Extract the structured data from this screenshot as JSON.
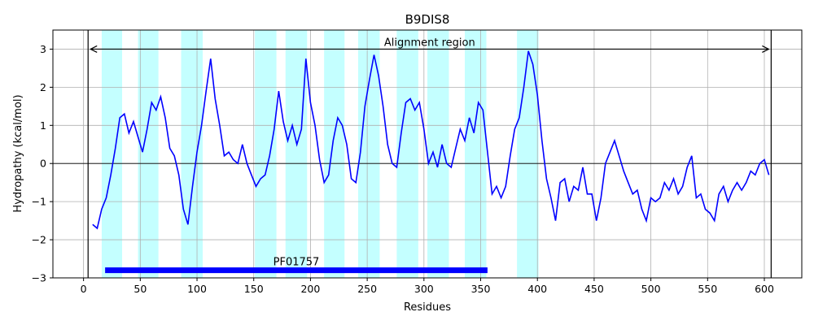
{
  "chart_data": {
    "type": "line",
    "title": "B9DIS8",
    "xlabel": "Residues",
    "ylabel": "Hydropathy (kcal/mol)",
    "xlim": [
      -27,
      633
    ],
    "ylim": [
      -3,
      3.5
    ],
    "xticks": [
      0,
      50,
      100,
      150,
      200,
      250,
      300,
      350,
      400,
      450,
      500,
      550,
      600
    ],
    "yticks": [
      -3,
      -2,
      -1,
      0,
      1,
      2,
      3
    ],
    "grid": true,
    "colors": {
      "line": "#0000ff",
      "tm_region": "#c4ffff",
      "domain_bar": "#0000ff",
      "axis": "#000000",
      "grid": "#b0b0b0"
    },
    "tm_regions": [
      [
        16,
        34
      ],
      [
        48,
        66
      ],
      [
        86,
        105
      ],
      [
        151,
        170
      ],
      [
        178,
        197
      ],
      [
        212,
        230
      ],
      [
        242,
        261
      ],
      [
        276,
        295
      ],
      [
        303,
        322
      ],
      [
        336,
        355
      ],
      [
        382,
        401
      ]
    ],
    "boundary_lines": [
      4,
      606
    ],
    "alignment_region": {
      "label": "Alignment region",
      "start": 4,
      "end": 606,
      "y": 3.0
    },
    "domain": {
      "label": "PF01757",
      "start": 19,
      "end": 356,
      "y": -2.8
    },
    "series": [
      {
        "x": [
          8,
          12,
          16,
          20,
          24,
          28,
          32,
          36,
          40,
          44,
          48,
          52,
          56,
          60,
          64,
          68,
          72,
          76,
          80,
          84,
          88,
          92,
          96,
          100,
          104,
          108,
          112,
          116,
          120,
          124,
          128,
          132,
          136,
          140,
          144,
          148,
          152,
          156,
          160,
          164,
          168,
          172,
          176,
          180,
          184,
          188,
          192,
          196,
          200,
          204,
          208,
          212,
          216,
          220,
          224,
          228,
          232,
          236,
          240,
          244,
          248,
          252,
          256,
          260,
          264,
          268,
          272,
          276,
          280,
          284,
          288,
          292,
          296,
          300,
          304,
          308,
          312,
          316,
          320,
          324,
          328,
          332,
          336,
          340,
          344,
          348,
          352,
          356,
          360,
          364,
          368,
          372,
          376,
          380,
          384,
          388,
          392,
          396,
          400,
          404,
          408,
          412,
          416,
          420,
          424,
          428,
          432,
          436,
          440,
          444,
          448,
          452,
          456,
          460,
          464,
          468,
          472,
          476,
          480,
          484,
          488,
          492,
          496,
          500,
          504,
          508,
          512,
          516,
          520,
          524,
          528,
          532,
          536,
          540,
          544,
          548,
          552,
          556,
          560,
          564,
          568,
          572,
          576,
          580,
          584,
          588,
          592,
          596,
          600,
          604
        ],
        "values": [
          -1.6,
          -1.7,
          -1.2,
          -0.9,
          -0.3,
          0.4,
          1.2,
          1.3,
          0.8,
          1.1,
          0.7,
          0.3,
          0.9,
          1.6,
          1.4,
          1.75,
          1.2,
          0.4,
          0.2,
          -0.3,
          -1.2,
          -1.6,
          -0.6,
          0.3,
          1.0,
          1.9,
          2.75,
          1.7,
          1.0,
          0.2,
          0.3,
          0.1,
          0.0,
          0.5,
          0.0,
          -0.3,
          -0.6,
          -0.4,
          -0.3,
          0.2,
          0.9,
          1.9,
          1.1,
          0.6,
          1.0,
          0.5,
          0.9,
          2.75,
          1.6,
          1.0,
          0.1,
          -0.5,
          -0.3,
          0.6,
          1.2,
          1.0,
          0.5,
          -0.4,
          -0.5,
          0.3,
          1.5,
          2.2,
          2.85,
          2.3,
          1.5,
          0.5,
          0.0,
          -0.1,
          0.8,
          1.6,
          1.7,
          1.4,
          1.6,
          0.9,
          0.0,
          0.3,
          -0.1,
          0.5,
          0.0,
          -0.1,
          0.4,
          0.9,
          0.6,
          1.2,
          0.8,
          1.6,
          1.4,
          0.3,
          -0.8,
          -0.6,
          -0.9,
          -0.6,
          0.2,
          0.9,
          1.2,
          2.0,
          2.95,
          2.6,
          1.8,
          0.6,
          -0.4,
          -0.9,
          -1.5,
          -0.5,
          -0.4,
          -1.0,
          -0.6,
          -0.7,
          -0.1,
          -0.8,
          -0.8,
          -1.5,
          -0.9,
          0.0,
          0.3,
          0.6,
          0.2,
          -0.2,
          -0.5,
          -0.8,
          -0.7,
          -1.2,
          -1.5,
          -0.9,
          -1.0,
          -0.9,
          -0.5,
          -0.7,
          -0.4,
          -0.8,
          -0.6,
          -0.1,
          0.2,
          -0.9,
          -0.8,
          -1.2,
          -1.3,
          -1.5,
          -0.8,
          -0.6,
          -1.0,
          -0.7,
          -0.5,
          -0.7,
          -0.5,
          -0.2,
          -0.3,
          0.0,
          0.1,
          -0.3
        ]
      }
    ]
  }
}
